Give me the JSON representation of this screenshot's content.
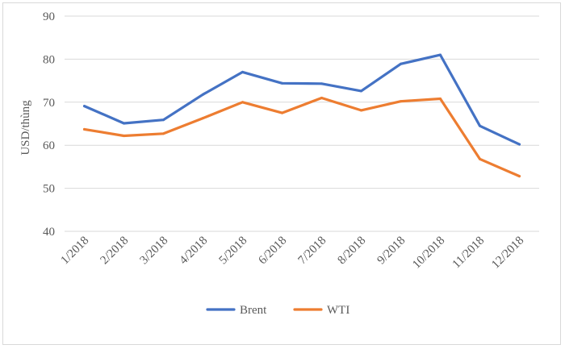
{
  "chart_data": {
    "type": "line",
    "title": "",
    "xlabel": "",
    "ylabel": "USD/thùng",
    "categories": [
      "1/2018",
      "2/2018",
      "3/2018",
      "4/2018",
      "5/2018",
      "6/2018",
      "7/2018",
      "8/2018",
      "9/2018",
      "10/2018",
      "11/2018",
      "12/2018"
    ],
    "series": [
      {
        "name": "Brent",
        "color": "#4472c4",
        "values": [
          69.1,
          65.1,
          65.9,
          71.8,
          77.0,
          74.4,
          74.3,
          72.6,
          78.9,
          81.0,
          64.5,
          60.2
        ]
      },
      {
        "name": "WTI",
        "color": "#ed7d31",
        "values": [
          63.7,
          62.2,
          62.7,
          66.3,
          70.0,
          67.5,
          71.0,
          68.1,
          70.2,
          70.8,
          56.8,
          52.8
        ]
      }
    ],
    "ylim": [
      40,
      90
    ],
    "yticks": [
      40,
      50,
      60,
      70,
      80,
      90
    ],
    "grid": true,
    "legend": "bottom",
    "gridColor": "#d9d9d9"
  }
}
